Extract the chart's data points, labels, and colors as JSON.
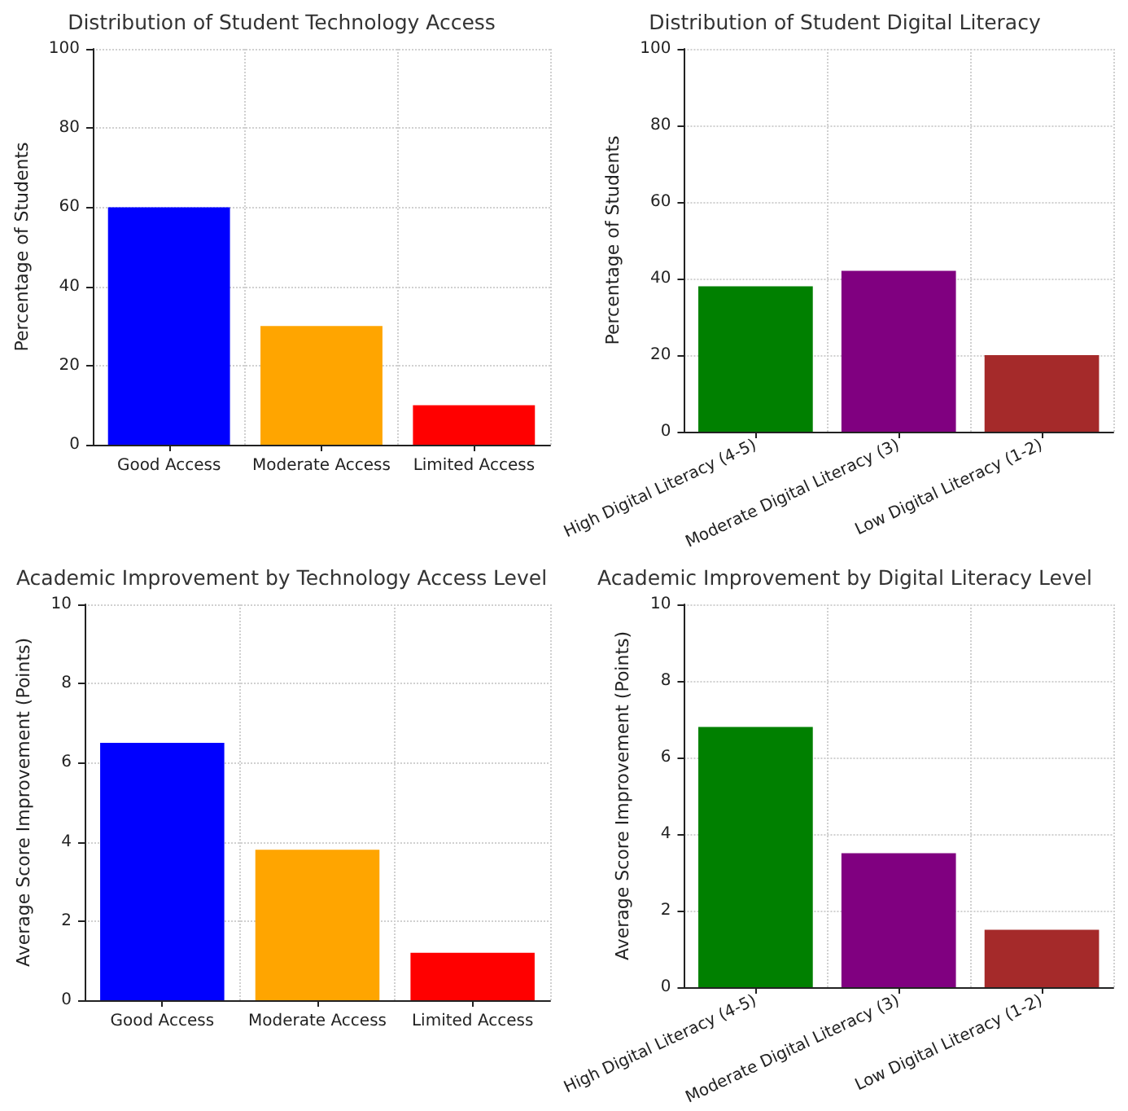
{
  "chart_data": [
    {
      "type": "bar",
      "title": "Distribution of Student Technology Access",
      "ylabel": "Percentage of Students",
      "categories": [
        "Good Access",
        "Moderate Access",
        "Limited Access"
      ],
      "values": [
        60,
        30,
        10
      ],
      "colors": [
        "#0000ff",
        "#ffa500",
        "#ff0000"
      ],
      "ylim": [
        0,
        100
      ],
      "yticks": [
        0,
        20,
        40,
        60,
        80,
        100
      ],
      "grid": true
    },
    {
      "type": "bar",
      "title": "Distribution of Student Digital Literacy",
      "ylabel": "Percentage of Students",
      "categories": [
        "High Digital Literacy (4-5)",
        "Moderate Digital Literacy (3)",
        "Low Digital Literacy (1-2)"
      ],
      "values": [
        38,
        42,
        20
      ],
      "colors": [
        "#008000",
        "#800080",
        "#a52a2a"
      ],
      "ylim": [
        0,
        100
      ],
      "yticks": [
        0,
        20,
        40,
        60,
        80,
        100
      ],
      "grid": true
    },
    {
      "type": "bar",
      "title": "Academic Improvement by Technology Access Level",
      "ylabel": "Average Score Improvement (Points)",
      "categories": [
        "Good Access",
        "Moderate Access",
        "Limited Access"
      ],
      "values": [
        6.5,
        3.8,
        1.2
      ],
      "colors": [
        "#0000ff",
        "#ffa500",
        "#ff0000"
      ],
      "ylim": [
        0,
        10
      ],
      "yticks": [
        0,
        2,
        4,
        6,
        8,
        10
      ],
      "grid": true
    },
    {
      "type": "bar",
      "title": "Academic Improvement by Digital Literacy Level",
      "ylabel": "Average Score Improvement (Points)",
      "categories": [
        "High Digital Literacy (4-5)",
        "Moderate Digital Literacy (3)",
        "Low Digital Literacy (1-2)"
      ],
      "values": [
        6.8,
        3.5,
        1.5
      ],
      "colors": [
        "#008000",
        "#800080",
        "#a52a2a"
      ],
      "ylim": [
        0,
        10
      ],
      "yticks": [
        0,
        2,
        4,
        6,
        8,
        10
      ],
      "grid": true
    }
  ]
}
